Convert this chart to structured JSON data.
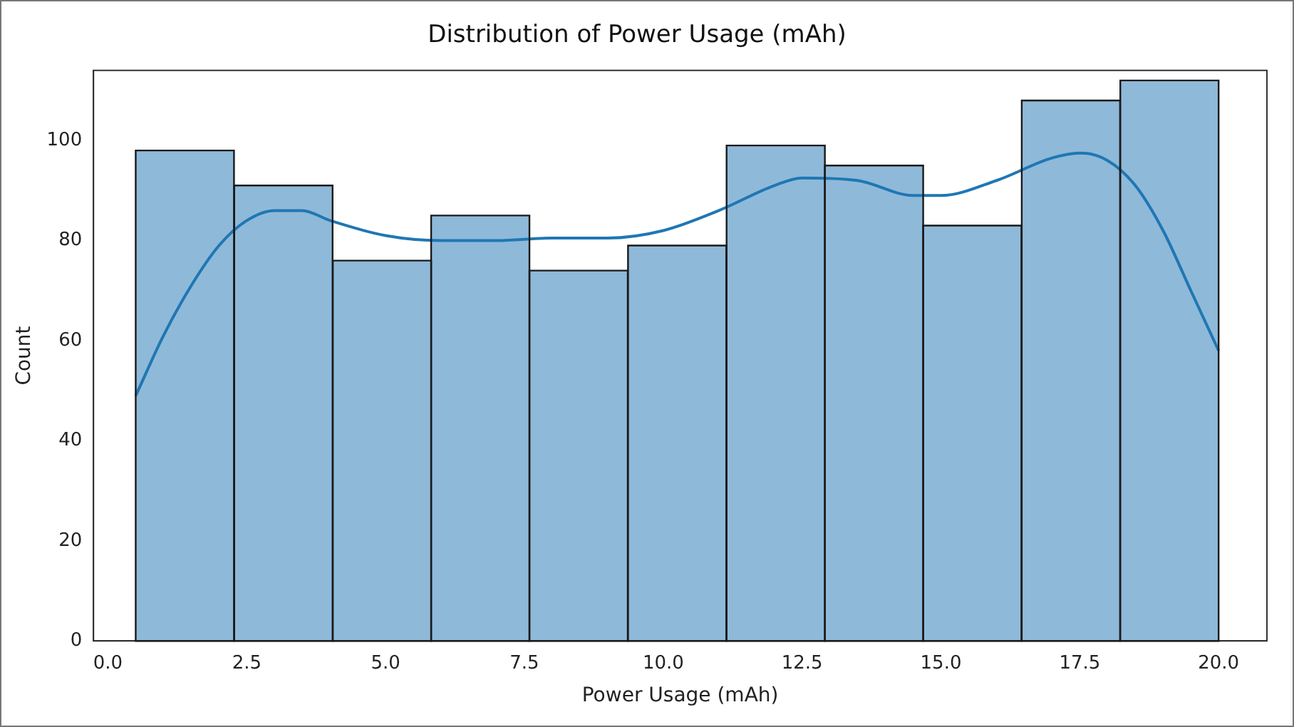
{
  "chart_data": {
    "type": "histogram",
    "title": "Distribution of Power Usage (mAh)",
    "xlabel": "Power Usage (mAh)",
    "ylabel": "Count",
    "bins": [
      0.5,
      2.27,
      4.05,
      5.82,
      7.59,
      9.36,
      11.14,
      12.91,
      14.68,
      16.45,
      18.23,
      20.0
    ],
    "values": [
      98,
      91,
      76,
      85,
      74,
      79,
      99,
      95,
      83,
      108,
      112
    ],
    "color": "#8fb9d9",
    "series": [
      {
        "type": "line",
        "color": "#1f77b4",
        "x": [
          0.5,
          1.0,
          1.5,
          2.0,
          2.5,
          3.0,
          3.5,
          4.0,
          5.0,
          6.0,
          7.0,
          8.0,
          9.0,
          10.0,
          11.0,
          12.0,
          12.5,
          13.5,
          14.5,
          15.0,
          16.0,
          17.0,
          17.5,
          18.0,
          18.5,
          19.0,
          19.5,
          20.0
        ],
        "values": [
          49,
          61,
          71,
          79,
          84,
          86,
          86,
          84,
          81,
          80,
          80,
          80.5,
          80.5,
          82,
          86,
          91,
          92.5,
          92,
          89,
          89,
          92,
          96.5,
          97.5,
          96,
          91,
          82,
          70,
          58
        ]
      }
    ],
    "xlim": [
      -0.26,
      20.87
    ],
    "ylim": [
      0,
      114
    ],
    "xticks": [
      {
        "value": 0,
        "label": "0.0"
      },
      2.5,
      {
        "value": 5,
        "label": "5.0"
      },
      7.5,
      {
        "value": 10,
        "label": "10.0"
      },
      12.5,
      {
        "value": 15,
        "label": "15.0"
      },
      17.5,
      {
        "value": 20,
        "label": "20.0"
      }
    ],
    "yticks": [
      0,
      20,
      40,
      60,
      80,
      100
    ],
    "grid": false,
    "legend": false
  }
}
